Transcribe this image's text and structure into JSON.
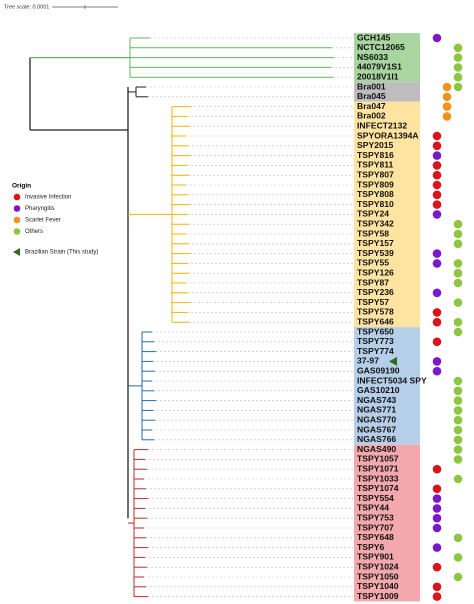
{
  "tree_scale": "Tree scale: 0.0001",
  "legend": {
    "title": "Origin",
    "items": [
      "Invasive Infection",
      "Pharyngitis",
      "Scarlet Fever",
      "Others"
    ],
    "marker": "Brazilian Strain (This study)"
  },
  "leaves": [
    "GCH145",
    "NCTC12065",
    "NS6033",
    "44079V1S1",
    "20018V1I1",
    "Bra001",
    "Bra045",
    "Bra047",
    "Bra002",
    "INFECT2132",
    "SPYORA1394A",
    "SPY2015",
    "TSPY816",
    "TSPY811",
    "TSPY807",
    "TSPY809",
    "TSPY808",
    "TSPY810",
    "TSPY24",
    "TSPY342",
    "TSPY58",
    "TSPY157",
    "TSPY539",
    "TSPY55",
    "TSPY126",
    "TSPY87",
    "TSPY236",
    "TSPY57",
    "TSPY578",
    "TSPY646",
    "TSPY650",
    "TSPY773",
    "TSPY774",
    "37-97",
    "GAS09190",
    "INFECT5034 SPY",
    "GAS10210",
    "NGAS743",
    "NGAS771",
    "NGAS770",
    "NGAS767",
    "NGAS766",
    "NGAS490",
    "TSPY1057",
    "TSPY1071",
    "TSPY1033",
    "TSPY1074",
    "TSPY554",
    "TSPY44",
    "TSPY753",
    "TSPY707",
    "TSPY648",
    "TSPY6",
    "TSPY901",
    "TSPY1024",
    "TSPY1050",
    "TSPY1040",
    "TSPY1009"
  ]
}
